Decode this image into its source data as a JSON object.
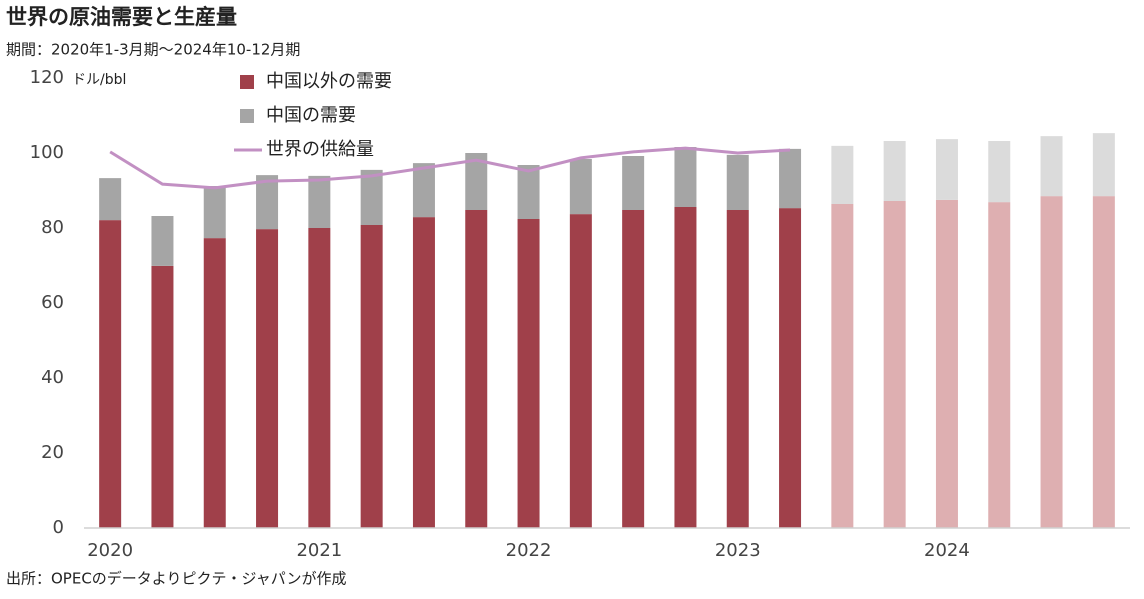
{
  "chart_data": {
    "type": "stacked_bar_line",
    "title": "世界の原油需要と生産量",
    "subtitle": "期間：2020年1-3月期～2024年10-12月期",
    "y_label": "ドル/bbl",
    "source": "出所：OPECのデータよりピクテ・ジャパンが作成",
    "categories": [
      "2020",
      null,
      null,
      null,
      "2021",
      null,
      null,
      null,
      "2022",
      null,
      null,
      null,
      "2023",
      null,
      null,
      null,
      "2024",
      null,
      null,
      null
    ],
    "series": [
      {
        "name": "中国以外の需要",
        "color": "#a0404a",
        "colors": [
          "#a0404a",
          "#a0404a",
          "#a0404a",
          "#a0404a",
          "#a0404a",
          "#a0404a",
          "#a0404a",
          "#a0404a",
          "#a0404a",
          "#a0404a",
          "#a0404a",
          "#a0404a",
          "#a0404a",
          "#a0404a",
          "#deafb1",
          "#deafb1",
          "#deafb1",
          "#deafb1",
          "#deafb1",
          "#deafb1"
        ],
        "values": [
          82.1,
          69.9,
          77.3,
          79.7,
          80.0,
          80.8,
          82.9,
          84.8,
          82.4,
          83.7,
          84.8,
          85.6,
          84.8,
          85.3,
          86.4,
          87.2,
          87.5,
          86.9,
          88.5,
          88.5
        ]
      },
      {
        "name": "中国の需要",
        "color": "#a5a5a5",
        "colors": [
          "#a5a5a5",
          "#a5a5a5",
          "#a5a5a5",
          "#a5a5a5",
          "#a5a5a5",
          "#a5a5a5",
          "#a5a5a5",
          "#a5a5a5",
          "#a5a5a5",
          "#a5a5a5",
          "#a5a5a5",
          "#a5a5a5",
          "#a5a5a5",
          "#a5a5a5",
          "#dbdbdb",
          "#dbdbdb",
          "#dbdbdb",
          "#dbdbdb",
          "#dbdbdb",
          "#dbdbdb"
        ],
        "values": [
          11.2,
          13.3,
          13.9,
          14.4,
          13.9,
          14.7,
          14.4,
          15.2,
          14.4,
          14.7,
          14.4,
          16.0,
          14.7,
          15.8,
          15.5,
          16.0,
          16.2,
          16.3,
          16.0,
          16.8
        ]
      },
      {
        "name": "世界の供給量",
        "type": "line",
        "color": "#c290c3",
        "values": [
          100.3,
          91.7,
          90.7,
          92.5,
          92.8,
          93.9,
          96.0,
          98.1,
          95.2,
          98.7,
          100.3,
          101.3,
          100.0,
          100.8,
          null,
          null,
          null,
          null,
          null,
          null
        ]
      }
    ],
    "ylim": [
      0,
      120
    ],
    "yticks": [
      0,
      20,
      40,
      60,
      80,
      100,
      120
    ],
    "grid": false
  }
}
